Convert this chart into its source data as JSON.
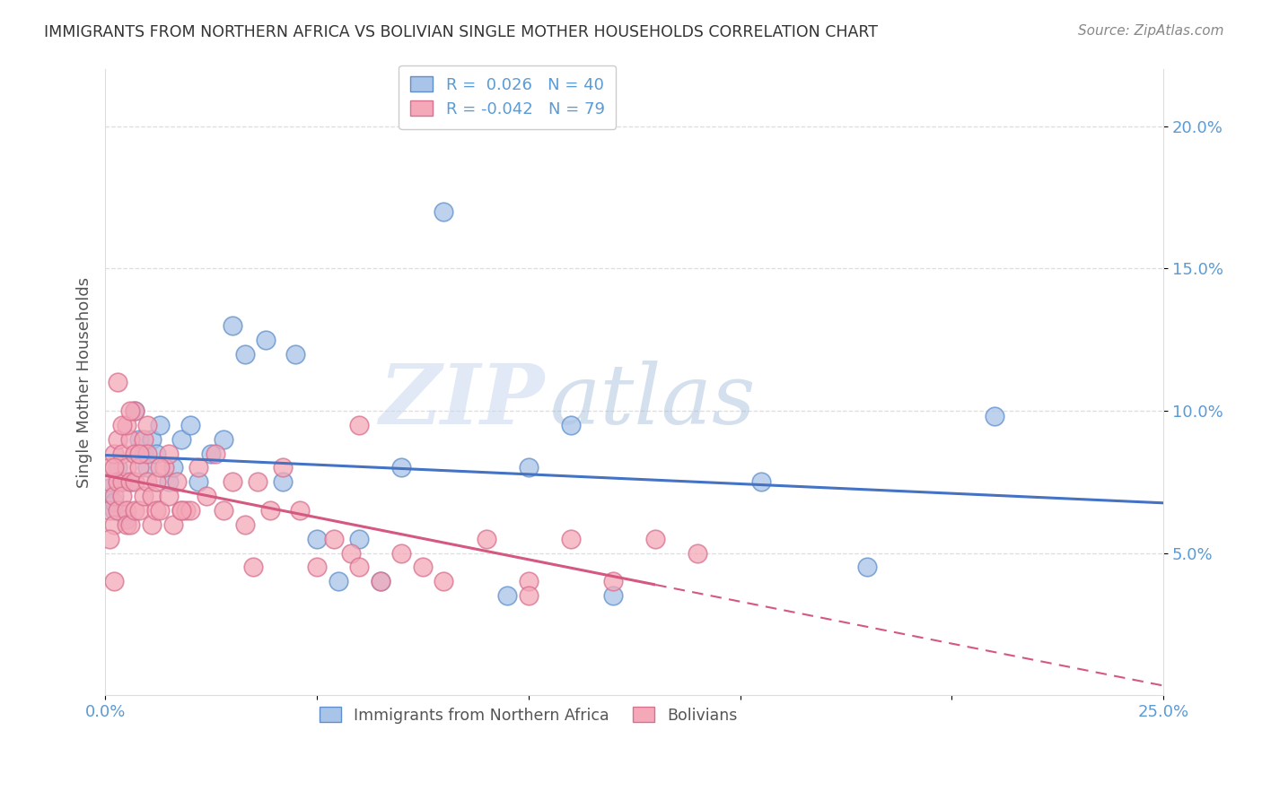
{
  "title": "IMMIGRANTS FROM NORTHERN AFRICA VS BOLIVIAN SINGLE MOTHER HOUSEHOLDS CORRELATION CHART",
  "source": "Source: ZipAtlas.com",
  "ylabel": "Single Mother Households",
  "xlim": [
    0.0,
    0.25
  ],
  "ylim": [
    0.0,
    0.22
  ],
  "ytick_vals": [
    0.05,
    0.1,
    0.15,
    0.2
  ],
  "ytick_labels": [
    "5.0%",
    "10.0%",
    "15.0%",
    "20.0%"
  ],
  "xtick_vals": [
    0.0,
    0.05,
    0.1,
    0.15,
    0.2,
    0.25
  ],
  "xtick_labels": [
    "0.0%",
    "",
    "",
    "",
    "",
    "25.0%"
  ],
  "legend1_label": "R =  0.026   N = 40",
  "legend2_label": "R = -0.042   N = 79",
  "legend1_color": "#a8c4e8",
  "legend2_color": "#f4a8b8",
  "line1_color": "#4472c4",
  "line2_color": "#d45880",
  "scatter1_color": "#a8c4e8",
  "scatter2_color": "#f4a8b8",
  "scatter1_edge": "#6090cc",
  "scatter2_edge": "#d87090",
  "watermark_left": "ZIP",
  "watermark_right": "atlas",
  "background_color": "#ffffff",
  "tick_color": "#5b9bd5",
  "title_color": "#333333",
  "source_color": "#888888",
  "ylabel_color": "#555555",
  "grid_color": "#dddddd",
  "blue_x": [
    0.002,
    0.003,
    0.004,
    0.005,
    0.006,
    0.007,
    0.008,
    0.009,
    0.01,
    0.011,
    0.012,
    0.013,
    0.015,
    0.016,
    0.018,
    0.02,
    0.022,
    0.025,
    0.028,
    0.03,
    0.033,
    0.038,
    0.042,
    0.045,
    0.05,
    0.055,
    0.06,
    0.065,
    0.07,
    0.08,
    0.095,
    0.1,
    0.11,
    0.12,
    0.155,
    0.18,
    0.21,
    0.001,
    0.001,
    0.002
  ],
  "blue_y": [
    0.065,
    0.08,
    0.075,
    0.062,
    0.075,
    0.1,
    0.09,
    0.085,
    0.08,
    0.09,
    0.085,
    0.095,
    0.075,
    0.08,
    0.09,
    0.095,
    0.075,
    0.085,
    0.09,
    0.13,
    0.12,
    0.125,
    0.075,
    0.12,
    0.055,
    0.04,
    0.055,
    0.04,
    0.08,
    0.17,
    0.035,
    0.08,
    0.095,
    0.035,
    0.075,
    0.045,
    0.098,
    0.07,
    0.073,
    0.068
  ],
  "pink_x": [
    0.001,
    0.001,
    0.001,
    0.002,
    0.002,
    0.002,
    0.003,
    0.003,
    0.003,
    0.004,
    0.004,
    0.004,
    0.005,
    0.005,
    0.005,
    0.006,
    0.006,
    0.006,
    0.007,
    0.007,
    0.007,
    0.008,
    0.008,
    0.009,
    0.009,
    0.01,
    0.01,
    0.011,
    0.011,
    0.012,
    0.012,
    0.013,
    0.014,
    0.015,
    0.015,
    0.016,
    0.017,
    0.018,
    0.019,
    0.02,
    0.022,
    0.024,
    0.026,
    0.028,
    0.03,
    0.033,
    0.036,
    0.039,
    0.042,
    0.046,
    0.05,
    0.054,
    0.058,
    0.06,
    0.065,
    0.07,
    0.075,
    0.08,
    0.09,
    0.1,
    0.11,
    0.12,
    0.13,
    0.14,
    0.003,
    0.005,
    0.007,
    0.002,
    0.004,
    0.006,
    0.008,
    0.01,
    0.013,
    0.018,
    0.035,
    0.06,
    0.1,
    0.001,
    0.002
  ],
  "pink_y": [
    0.075,
    0.065,
    0.08,
    0.07,
    0.085,
    0.06,
    0.065,
    0.09,
    0.075,
    0.075,
    0.085,
    0.07,
    0.065,
    0.08,
    0.06,
    0.06,
    0.09,
    0.075,
    0.075,
    0.085,
    0.065,
    0.065,
    0.08,
    0.07,
    0.09,
    0.075,
    0.085,
    0.07,
    0.06,
    0.075,
    0.065,
    0.065,
    0.08,
    0.07,
    0.085,
    0.06,
    0.075,
    0.065,
    0.065,
    0.065,
    0.08,
    0.07,
    0.085,
    0.065,
    0.075,
    0.06,
    0.075,
    0.065,
    0.08,
    0.065,
    0.045,
    0.055,
    0.05,
    0.095,
    0.04,
    0.05,
    0.045,
    0.04,
    0.055,
    0.04,
    0.055,
    0.04,
    0.055,
    0.05,
    0.11,
    0.095,
    0.1,
    0.08,
    0.095,
    0.1,
    0.085,
    0.095,
    0.08,
    0.065,
    0.045,
    0.045,
    0.035,
    0.055,
    0.04
  ]
}
